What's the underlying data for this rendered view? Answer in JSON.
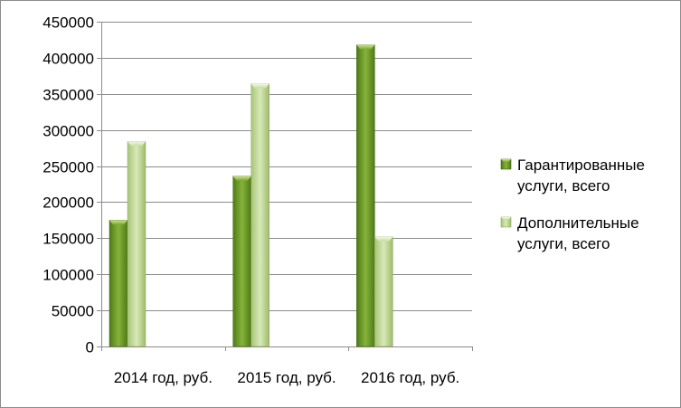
{
  "chart_data": {
    "type": "bar",
    "title": "",
    "xlabel": "",
    "ylabel": "",
    "categories": [
      "2014 год, руб.",
      "2015 год, руб.",
      "2016 год, руб."
    ],
    "series": [
      {
        "name": "Гарантированные услуги, всего",
        "name_lines": [
          "Гарантированные",
          "услуги, всего"
        ],
        "color": "#6f9a2a",
        "values": [
          175000,
          236000,
          418000
        ]
      },
      {
        "name": "Дополнительные услуги, всего",
        "name_lines": [
          "Дополнительные",
          "услуги, всего"
        ],
        "color": "#b8d28a",
        "values": [
          284000,
          364000,
          152000
        ]
      }
    ],
    "ylim": [
      0,
      450000
    ],
    "yticks": [
      0,
      50000,
      100000,
      150000,
      200000,
      250000,
      300000,
      350000,
      400000,
      450000
    ],
    "grid": true,
    "legend": "right"
  }
}
